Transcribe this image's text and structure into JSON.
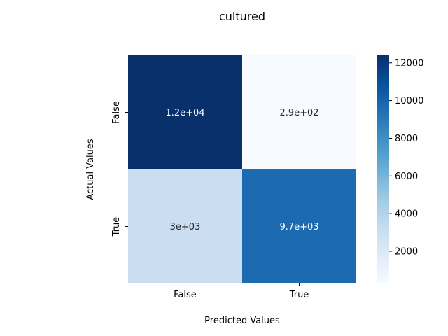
{
  "chart_data": {
    "type": "heatmap",
    "title": "cultured",
    "xlabel": "Predicted Values",
    "ylabel": "Actual Values",
    "x_categories": [
      "False",
      "True"
    ],
    "y_categories": [
      "False",
      "True"
    ],
    "values": [
      [
        12400,
        290
      ],
      [
        3000,
        9700
      ]
    ],
    "annotations": [
      [
        "1.2e+04",
        "2.9e+02"
      ],
      [
        "3e+03",
        "9.7e+03"
      ]
    ],
    "colorbar": {
      "colormap": "Blues",
      "min": 290,
      "max": 12400,
      "ticks": [
        2000,
        4000,
        6000,
        8000,
        10000,
        12000
      ],
      "tick_labels": [
        "2000",
        "4000",
        "6000",
        "8000",
        "10000",
        "12000"
      ]
    }
  }
}
